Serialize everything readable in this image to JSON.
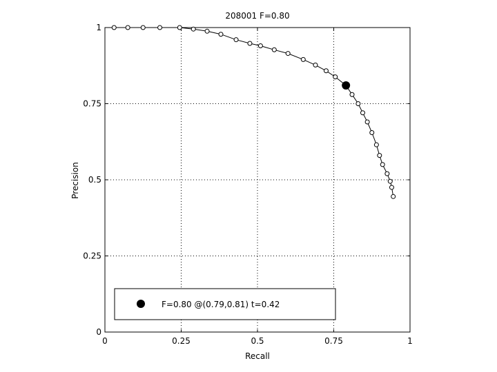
{
  "chart_data": {
    "type": "line",
    "title": "208001 F=0.80",
    "xlabel": "Recall",
    "ylabel": "Precision",
    "xlim": [
      0,
      1
    ],
    "ylim": [
      0,
      1
    ],
    "xticks": [
      0,
      0.25,
      0.5,
      0.75,
      1
    ],
    "xtick_labels": [
      "0",
      "0.25",
      "0.5",
      "0.75",
      "1"
    ],
    "yticks": [
      0,
      0.25,
      0.5,
      0.75,
      1
    ],
    "ytick_labels": [
      "0",
      "0.25",
      "0.5",
      "0.75",
      "1"
    ],
    "grid": true,
    "legend_position": "bottom-left",
    "series": [
      {
        "points": [
          [
            0.03,
            1.0
          ],
          [
            0.075,
            1.0
          ],
          [
            0.125,
            1.0
          ],
          [
            0.18,
            1.0
          ],
          [
            0.245,
            1.0
          ],
          [
            0.29,
            0.995
          ],
          [
            0.335,
            0.988
          ],
          [
            0.38,
            0.978
          ],
          [
            0.43,
            0.96
          ],
          [
            0.475,
            0.948
          ],
          [
            0.51,
            0.94
          ],
          [
            0.555,
            0.927
          ],
          [
            0.6,
            0.915
          ],
          [
            0.65,
            0.895
          ],
          [
            0.69,
            0.877
          ],
          [
            0.725,
            0.858
          ],
          [
            0.755,
            0.838
          ],
          [
            0.79,
            0.81
          ],
          [
            0.81,
            0.78
          ],
          [
            0.83,
            0.75
          ],
          [
            0.845,
            0.72
          ],
          [
            0.86,
            0.69
          ],
          [
            0.875,
            0.655
          ],
          [
            0.89,
            0.615
          ],
          [
            0.9,
            0.58
          ],
          [
            0.91,
            0.55
          ],
          [
            0.925,
            0.52
          ],
          [
            0.935,
            0.495
          ],
          [
            0.94,
            0.475
          ],
          [
            0.945,
            0.445
          ]
        ]
      }
    ],
    "best_point": {
      "recall": 0.79,
      "precision": 0.81,
      "label": "F=0.80 @(0.79,0.81) t=0.42"
    }
  }
}
